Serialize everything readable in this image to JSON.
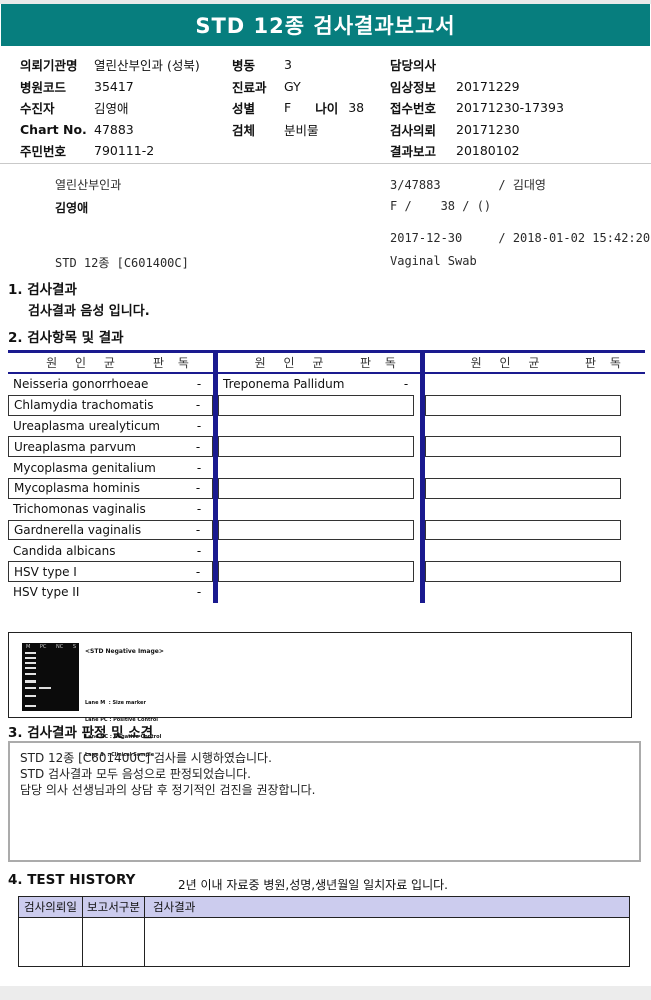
{
  "colors": {
    "header_banner_teal": "#077e7e",
    "table_border_navy": "#1a1a8f",
    "history_header_bg": "#ccccee",
    "row_box_border": "#333333"
  },
  "header": {
    "title": "STD 12종 검사결과보고서"
  },
  "patient_info": {
    "col1": [
      {
        "label": "의뢰기관명",
        "value": "열린산부인과 (성북)"
      },
      {
        "label": "병원코드",
        "value": "35417"
      },
      {
        "label": "수진자",
        "value": "김영애"
      },
      {
        "label": "Chart No.",
        "value": "47883"
      },
      {
        "label": "주민번호",
        "value": "790111-2"
      }
    ],
    "col2": [
      {
        "label": "병동",
        "value": "3"
      },
      {
        "label": "진료과",
        "value": "GY"
      },
      {
        "label": "성별",
        "value": "F",
        "label2": "나이",
        "value2": "38"
      },
      {
        "label": "검체",
        "value": "분비물"
      }
    ],
    "col3": [
      {
        "label": "담당의사",
        "value": ""
      },
      {
        "label": "임상정보",
        "value": "20171229"
      },
      {
        "label": "접수번호",
        "value": "20171230-17393"
      },
      {
        "label": "검사의뢰",
        "value": "20171230"
      },
      {
        "label": "결과보고",
        "value": "20180102"
      }
    ]
  },
  "summary_block": {
    "rows": [
      {
        "left": "열린산부인과",
        "right": "3/47883        / 김대영"
      },
      {
        "left": "김영애",
        "right": "F /    38 / ()"
      },
      {
        "left": "",
        "right": "2017-12-30     / 2018-01-02 15:42:20"
      },
      {
        "left": "STD 12종 [C601400C]",
        "right": "Vaginal Swab"
      }
    ]
  },
  "section1": {
    "heading": "1. 검사결과",
    "result_text": "검사결과 음성 입니다."
  },
  "section2": {
    "heading": "2. 검사항목 및 결과",
    "header": {
      "pathogen": "원 인 균",
      "reading": "판 독"
    },
    "left_rows": [
      {
        "name": "Neisseria gonorrhoeae",
        "reading": "-"
      },
      {
        "name": "Chlamydia trachomatis",
        "reading": "-"
      },
      {
        "name": "Ureaplasma urealyticum",
        "reading": "-"
      },
      {
        "name": "Ureaplasma parvum",
        "reading": "-"
      },
      {
        "name": "Mycoplasma genitalium",
        "reading": "-"
      },
      {
        "name": "Mycoplasma hominis",
        "reading": "-"
      },
      {
        "name": "Trichomonas vaginalis",
        "reading": "-"
      },
      {
        "name": "Gardnerella vaginalis",
        "reading": "-"
      },
      {
        "name": "Candida albicans",
        "reading": "-"
      },
      {
        "name": "HSV type I",
        "reading": "-"
      },
      {
        "name": "HSV type II",
        "reading": "-"
      }
    ],
    "middle_rows": [
      {
        "name": "Treponema Pallidum",
        "reading": "-"
      }
    ]
  },
  "gel_section": {
    "caption": "<STD Negative Image>",
    "lane_labels": [
      "M",
      "PC",
      "NC",
      "S"
    ],
    "legend": [
      "Lane M  : Size marker",
      "Lane PC : Positive Control",
      "Lane NC : Negative Control",
      "Lane S  : Clinical Sample"
    ]
  },
  "section3": {
    "heading": "3. 검사결과 판정 및 소견",
    "comments": [
      "STD 12종 [C601400C] 검사를 시행하였습니다.",
      "STD 검사결과 모두 음성으로 판정되었습니다.",
      "담당 의사 선생님과의 상담 후 정기적인 검진을 권장합니다."
    ]
  },
  "section4": {
    "heading": "4. TEST HISTORY",
    "note": "2년 이내 자료중 병원,성명,생년월일 일치자료 입니다.",
    "table": {
      "columns": [
        "검사의뢰일",
        "보고서구분",
        "검사결과"
      ]
    }
  }
}
